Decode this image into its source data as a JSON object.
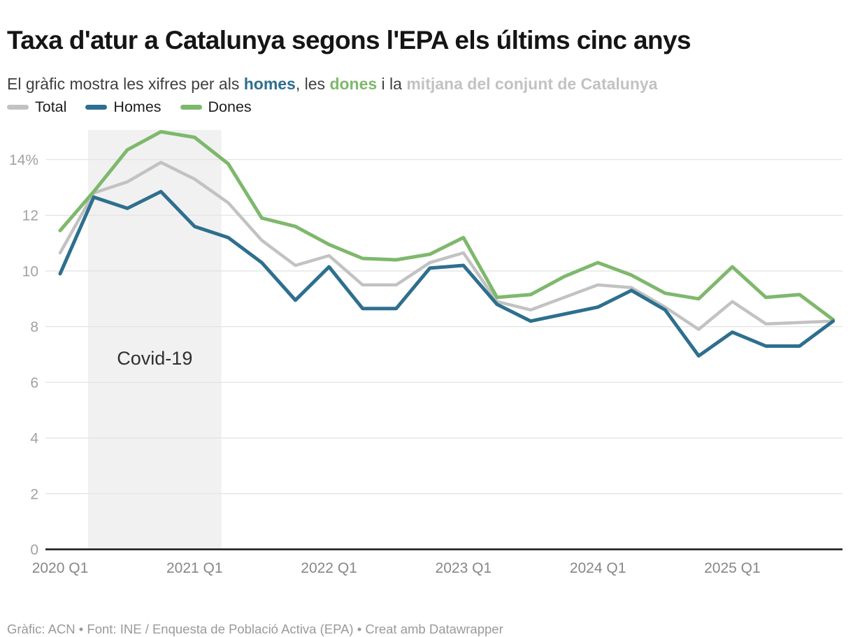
{
  "header": {
    "title": "Taxa d'atur a Catalunya segons l'EPA els últims cinc anys",
    "subtitle": {
      "part1": "El gràfic mostra les xifres per als ",
      "homes_word": "homes",
      "part2": ", les ",
      "dones_word": "dones",
      "part3": " i la ",
      "mitjana_phrase": "mitjana del conjunt de Catalunya"
    }
  },
  "footer": {
    "credit": "Gràfic: ACN • Font: INE / Enquesta de Població Activa (EPA) • Creat amb Datawrapper"
  },
  "chart_data": {
    "type": "line",
    "title": "Taxa d'atur a Catalunya segons l'EPA els últims cinc anys",
    "x": [
      "2020 Q1",
      "2020 Q2",
      "2020 Q3",
      "2020 Q4",
      "2021 Q1",
      "2021 Q2",
      "2021 Q3",
      "2021 Q4",
      "2022 Q1",
      "2022 Q2",
      "2022 Q3",
      "2022 Q4",
      "2023 Q1",
      "2023 Q2",
      "2023 Q3",
      "2023 Q4",
      "2024 Q1",
      "2024 Q2",
      "2024 Q3",
      "2024 Q4",
      "2025 Q1",
      "2025 Q2",
      "2025 Q3",
      "2025 Q4"
    ],
    "series": [
      {
        "name": "Total",
        "color": "#c2c2c2",
        "values": [
          10.65,
          12.8,
          13.2,
          13.9,
          13.3,
          12.45,
          11.1,
          10.2,
          10.55,
          9.5,
          9.5,
          10.3,
          10.65,
          8.9,
          8.6,
          9.05,
          9.5,
          9.4,
          8.7,
          7.9,
          8.9,
          8.1,
          8.15,
          8.2
        ]
      },
      {
        "name": "Homes",
        "color": "#2e6f8e",
        "values": [
          9.9,
          12.65,
          12.25,
          12.85,
          11.6,
          11.2,
          10.3,
          8.95,
          10.15,
          8.65,
          8.65,
          10.1,
          10.2,
          8.8,
          8.2,
          8.45,
          8.7,
          9.3,
          8.6,
          6.95,
          7.8,
          7.3,
          7.3,
          8.2
        ]
      },
      {
        "name": "Dones",
        "color": "#7eb86c",
        "values": [
          11.45,
          12.85,
          14.35,
          15.0,
          14.8,
          13.85,
          11.9,
          11.6,
          10.95,
          10.45,
          10.4,
          10.6,
          11.2,
          9.05,
          9.15,
          9.8,
          10.3,
          9.85,
          9.2,
          9.0,
          10.15,
          9.05,
          9.15,
          8.25
        ]
      }
    ],
    "y_ticks": [
      {
        "v": 0,
        "label": "0"
      },
      {
        "v": 2,
        "label": "2"
      },
      {
        "v": 4,
        "label": "4"
      },
      {
        "v": 6,
        "label": "6"
      },
      {
        "v": 8,
        "label": "8"
      },
      {
        "v": 10,
        "label": "10"
      },
      {
        "v": 12,
        "label": "12"
      },
      {
        "v": 14,
        "label": "14%"
      }
    ],
    "x_ticks": [
      {
        "index": 0,
        "label": "2020 Q1"
      },
      {
        "index": 4,
        "label": "2021 Q1"
      },
      {
        "index": 8,
        "label": "2022 Q1"
      },
      {
        "index": 12,
        "label": "2023 Q1"
      },
      {
        "index": 16,
        "label": "2024 Q1"
      },
      {
        "index": 20,
        "label": "2025 Q1"
      }
    ],
    "ylim": [
      0,
      15.1
    ],
    "grid": true,
    "legend_position": "top",
    "annotation": {
      "text": "Covid-19",
      "from_index": 0.83,
      "to_index": 4.8,
      "band_color": "#f1f1f1",
      "text_color": "#2f2f2f"
    }
  }
}
